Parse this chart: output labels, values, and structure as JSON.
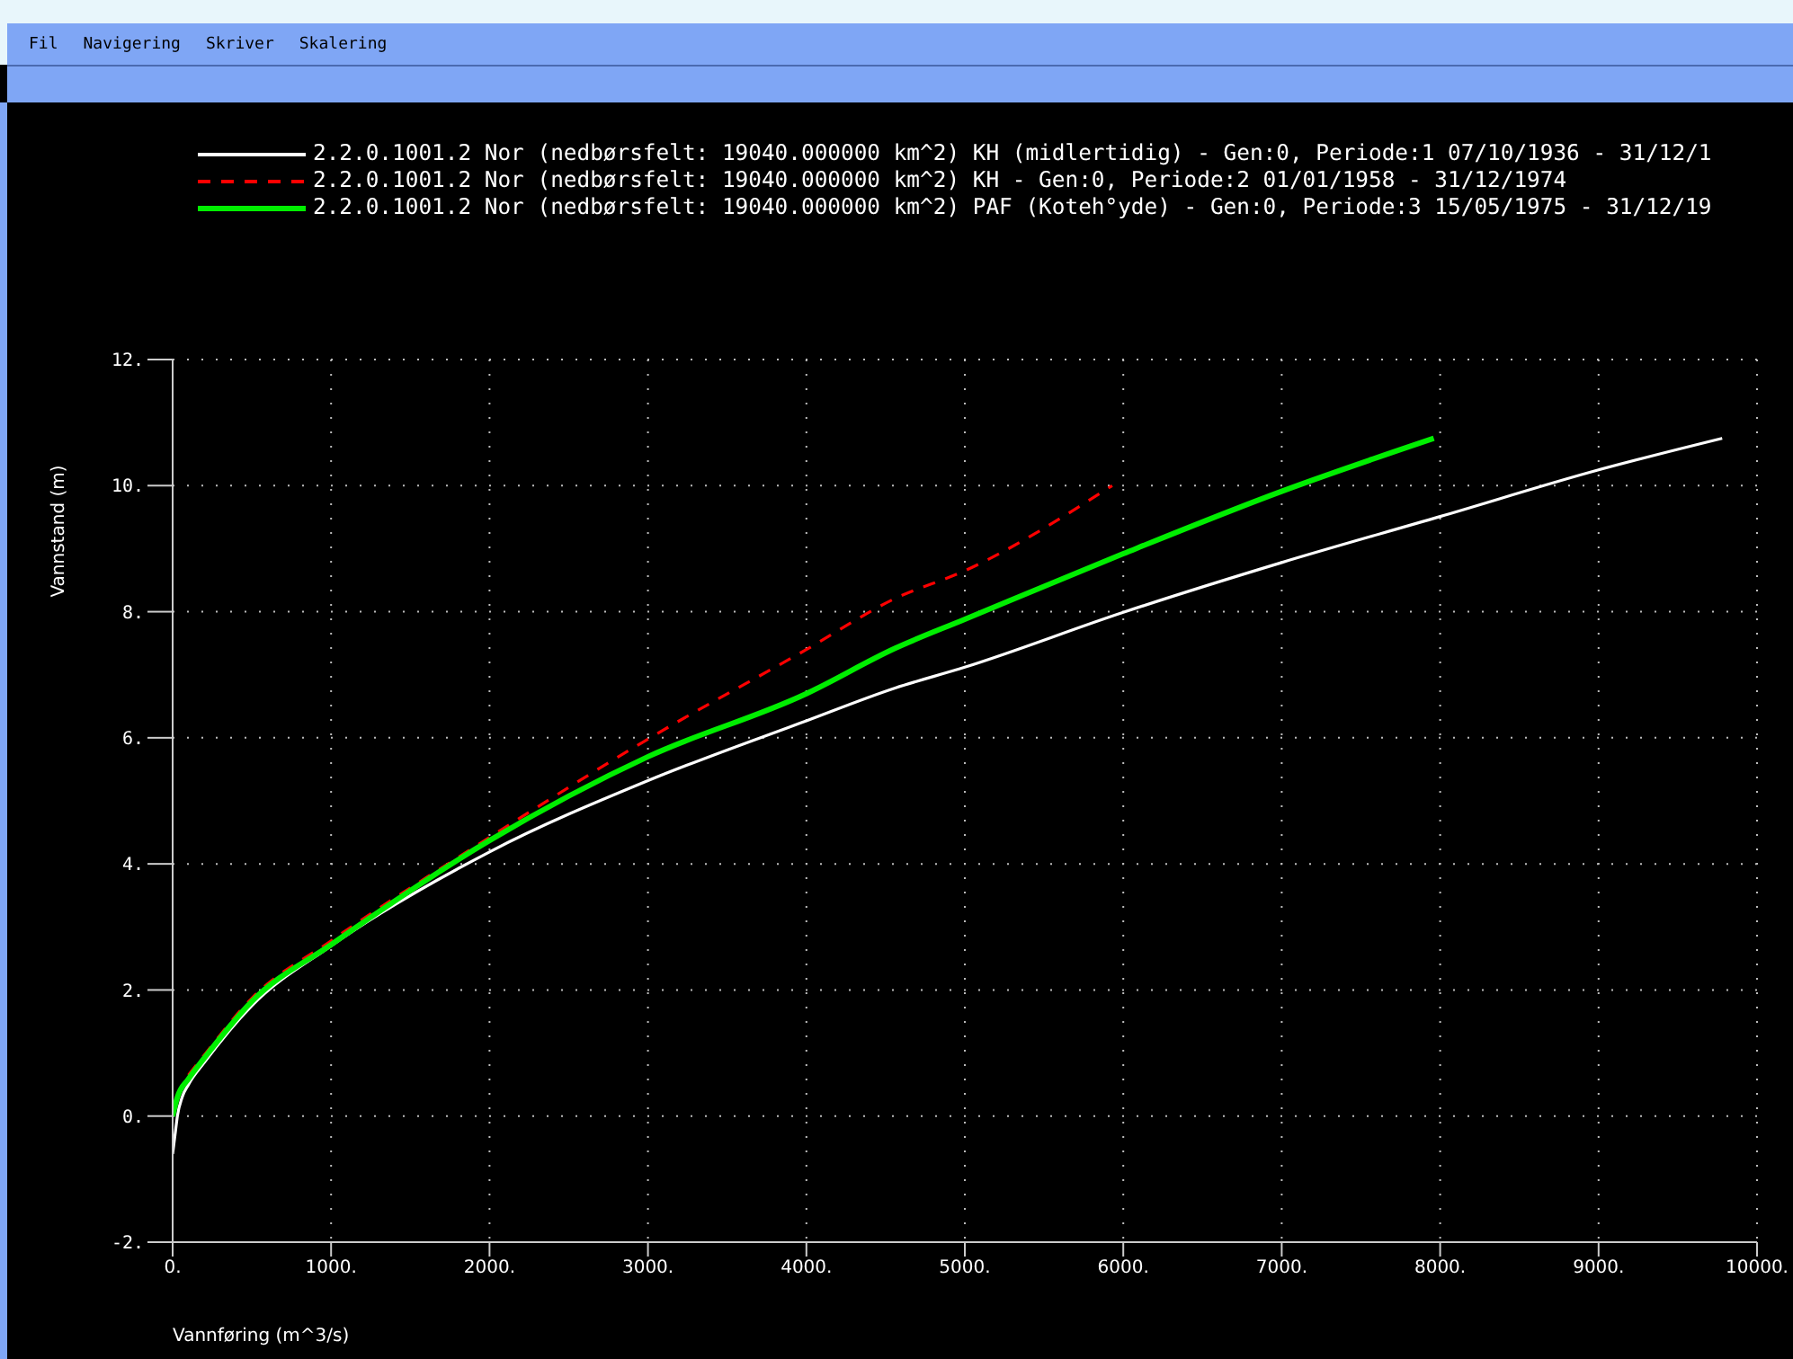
{
  "chart_data": {
    "type": "line",
    "xlabel": "Vannføring (m^3/s)",
    "ylabel": "Vannstand (m)",
    "annotations": [
      "Fil",
      "Navigering",
      "Skriver",
      "Skalering"
    ],
    "xlim": [
      0,
      10000
    ],
    "ylim": [
      -2,
      12
    ],
    "xticks": [
      {
        "value": 0,
        "label": "0."
      },
      {
        "value": 1000,
        "label": "1000."
      },
      {
        "value": 2000,
        "label": "2000."
      },
      {
        "value": 3000,
        "label": "3000."
      },
      {
        "value": 4000,
        "label": "4000."
      },
      {
        "value": 5000,
        "label": "5000."
      },
      {
        "value": 6000,
        "label": "6000."
      },
      {
        "value": 7000,
        "label": "7000."
      },
      {
        "value": 8000,
        "label": "8000."
      },
      {
        "value": 9000,
        "label": "9000."
      },
      {
        "value": 10000,
        "label": "10000."
      }
    ],
    "yticks": [
      {
        "value": -2,
        "label": "-2."
      },
      {
        "value": 0,
        "label": "0."
      },
      {
        "value": 2,
        "label": "2."
      },
      {
        "value": 4,
        "label": "4."
      },
      {
        "value": 6,
        "label": "6."
      },
      {
        "value": 8,
        "label": "8."
      },
      {
        "value": 10,
        "label": "10."
      },
      {
        "value": 12,
        "label": "12."
      }
    ],
    "grid": true,
    "legend": "top",
    "marker": "none",
    "series": [
      {
        "name": "2.2.0.1001.2 Nor (nedbørsfelt: 19040.000000 km^2) KH (midlertidig) - Gen:0, Periode:1 07/10/1936 - 31/12/1",
        "color": "#ffffff",
        "line_style": "solid",
        "x": [
          0,
          15,
          30,
          60,
          100,
          200,
          500,
          1000,
          2000,
          3000,
          4000,
          4560,
          5000,
          6000,
          7000,
          8000,
          9000,
          9780
        ],
        "values": [
          -0.6,
          -0.3,
          0.0,
          0.3,
          0.5,
          0.85,
          1.75,
          2.7,
          4.19,
          5.32,
          6.27,
          6.79,
          7.12,
          7.99,
          8.78,
          9.51,
          10.25,
          10.75
        ]
      },
      {
        "name": "2.2.0.1001.2 Nor (nedbørsfelt: 19040.000000 km^2) KH - Gen:0, Periode:2 01/01/1958 - 31/12/1974",
        "color": "#ff0000",
        "line_style": "dashed",
        "x": [
          100,
          200,
          500,
          1000,
          2000,
          3000,
          4000,
          4560,
          5000,
          5930
        ],
        "values": [
          0.65,
          0.97,
          1.87,
          2.78,
          4.42,
          5.98,
          7.4,
          8.21,
          8.65,
          10.0
        ]
      },
      {
        "name": "2.2.0.1001.2 Nor (nedbørsfelt: 19040.000000 km^2) PAF (Koteh°yde) - Gen:0, Periode:3 15/05/1975 - 31/12/19",
        "color": "#00ee00",
        "line_style": "solid",
        "x": [
          0,
          30,
          100,
          200,
          500,
          1000,
          2000,
          3000,
          4000,
          4560,
          5000,
          6000,
          7000,
          7960
        ],
        "values": [
          0.0,
          0.3,
          0.59,
          0.92,
          1.82,
          2.72,
          4.37,
          5.7,
          6.7,
          7.42,
          7.88,
          8.92,
          9.91,
          10.75
        ]
      }
    ]
  }
}
